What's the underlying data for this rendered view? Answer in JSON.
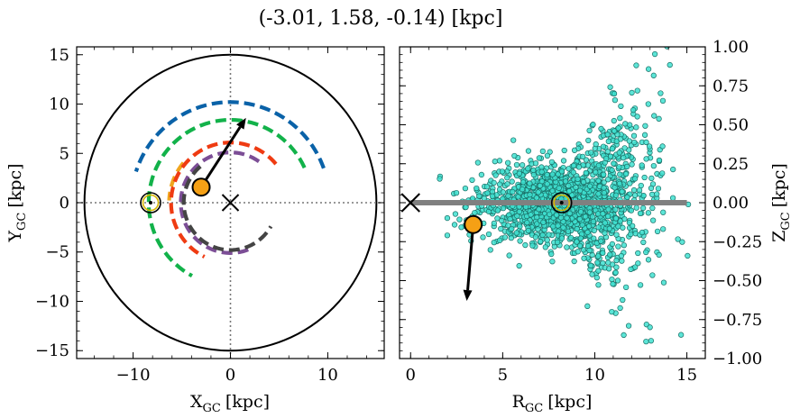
{
  "figure": {
    "title": "(-3.01, 1.58, -0.14) [kpc]"
  },
  "chart_data": [
    {
      "type": "scatter",
      "panel": "left",
      "xlabel": "X",
      "xlabel_sub": "GC",
      "xlabel_unit": "[kpc]",
      "ylabel": "Y",
      "ylabel_sub": "GC",
      "ylabel_unit": "[kpc]",
      "xlim": [
        -15.8,
        15.8
      ],
      "ylim": [
        -15.8,
        15.8
      ],
      "xticks": [
        -10,
        0,
        10
      ],
      "xtick_labels": [
        "−10",
        "0",
        "10"
      ],
      "yticks": [
        -15,
        -10,
        -5,
        0,
        5,
        10,
        15
      ],
      "ytick_labels": [
        "−15",
        "−10",
        "−5",
        "0",
        "5",
        "10",
        "15"
      ],
      "disk_radius_kpc": 15,
      "reference_lines": {
        "x": 0,
        "y": 0,
        "style": "dotted"
      },
      "galactic_center": {
        "x": 0,
        "y": 0,
        "marker": "x"
      },
      "sun": {
        "x": -8.2,
        "y": 0,
        "marker": "sun-symbol"
      },
      "object": {
        "x": -3.01,
        "y": 1.58,
        "color": "#f5a015"
      },
      "velocity_arrow": {
        "from": [
          -3.01,
          1.58
        ],
        "to": [
          1.6,
          8.6
        ]
      },
      "spiral_arms": [
        {
          "color": "#0a62a8",
          "r": 10.2,
          "theta_start_deg": 20,
          "theta_end_deg": 162
        },
        {
          "color": "#12b24a",
          "r": 8.4,
          "theta_start_deg": 25,
          "theta_end_deg": 242
        },
        {
          "color": "#f0a51e",
          "r": 6.3,
          "theta_start_deg": 140,
          "theta_end_deg": 178
        },
        {
          "color": "#ef3b12",
          "r": 6.1,
          "theta_start_deg": 40,
          "theta_end_deg": 244
        },
        {
          "color": "#7c4e96",
          "r": 5.1,
          "theta_start_deg": 55,
          "theta_end_deg": 293
        },
        {
          "color": "#444444",
          "r": 4.8,
          "theta_start_deg": 130,
          "theta_end_deg": 330
        }
      ]
    },
    {
      "type": "scatter",
      "panel": "right",
      "xlabel": "R",
      "xlabel_sub": "GC",
      "xlabel_unit": "[kpc]",
      "ylabel": "Z",
      "ylabel_sub": "GC",
      "ylabel_unit": "[kpc]",
      "xlim": [
        -0.6,
        16.0
      ],
      "ylim": [
        -1.0,
        1.0
      ],
      "xticks": [
        0,
        5,
        10,
        15
      ],
      "xtick_labels": [
        "0",
        "5",
        "10",
        "15"
      ],
      "yticks": [
        -1.0,
        -0.75,
        -0.5,
        -0.25,
        0.0,
        0.25,
        0.5,
        0.75,
        1.0
      ],
      "ytick_labels": [
        "−1.00",
        "−0.75",
        "−0.50",
        "−0.25",
        "0.00",
        "0.25",
        "0.50",
        "0.75",
        "1.00"
      ],
      "ytick_side": "right",
      "disk_line": {
        "x": [
          0,
          15
        ],
        "y": 0,
        "color": "#808080"
      },
      "galactic_center": {
        "x": 0,
        "y": 0,
        "marker": "x"
      },
      "sun": {
        "x": 8.2,
        "y": 0,
        "marker": "sun-symbol"
      },
      "object": {
        "x": 3.4,
        "y": -0.14,
        "color": "#f5a015"
      },
      "velocity_arrow": {
        "from": [
          3.4,
          -0.14
        ],
        "to": [
          3.05,
          -0.63
        ]
      },
      "stars": {
        "color": "#40e0d0",
        "edgecolor": "#1a6f66",
        "count": 1700,
        "r_center_kpc": 8.5,
        "r_min_kpc": 1.5,
        "r_max_kpc": 15.5,
        "z_scale_at_sun_kpc": 0.12,
        "z_flare_at_edge_kpc": 0.45,
        "flare_direction": "warp-up-for-y-positive"
      }
    }
  ]
}
